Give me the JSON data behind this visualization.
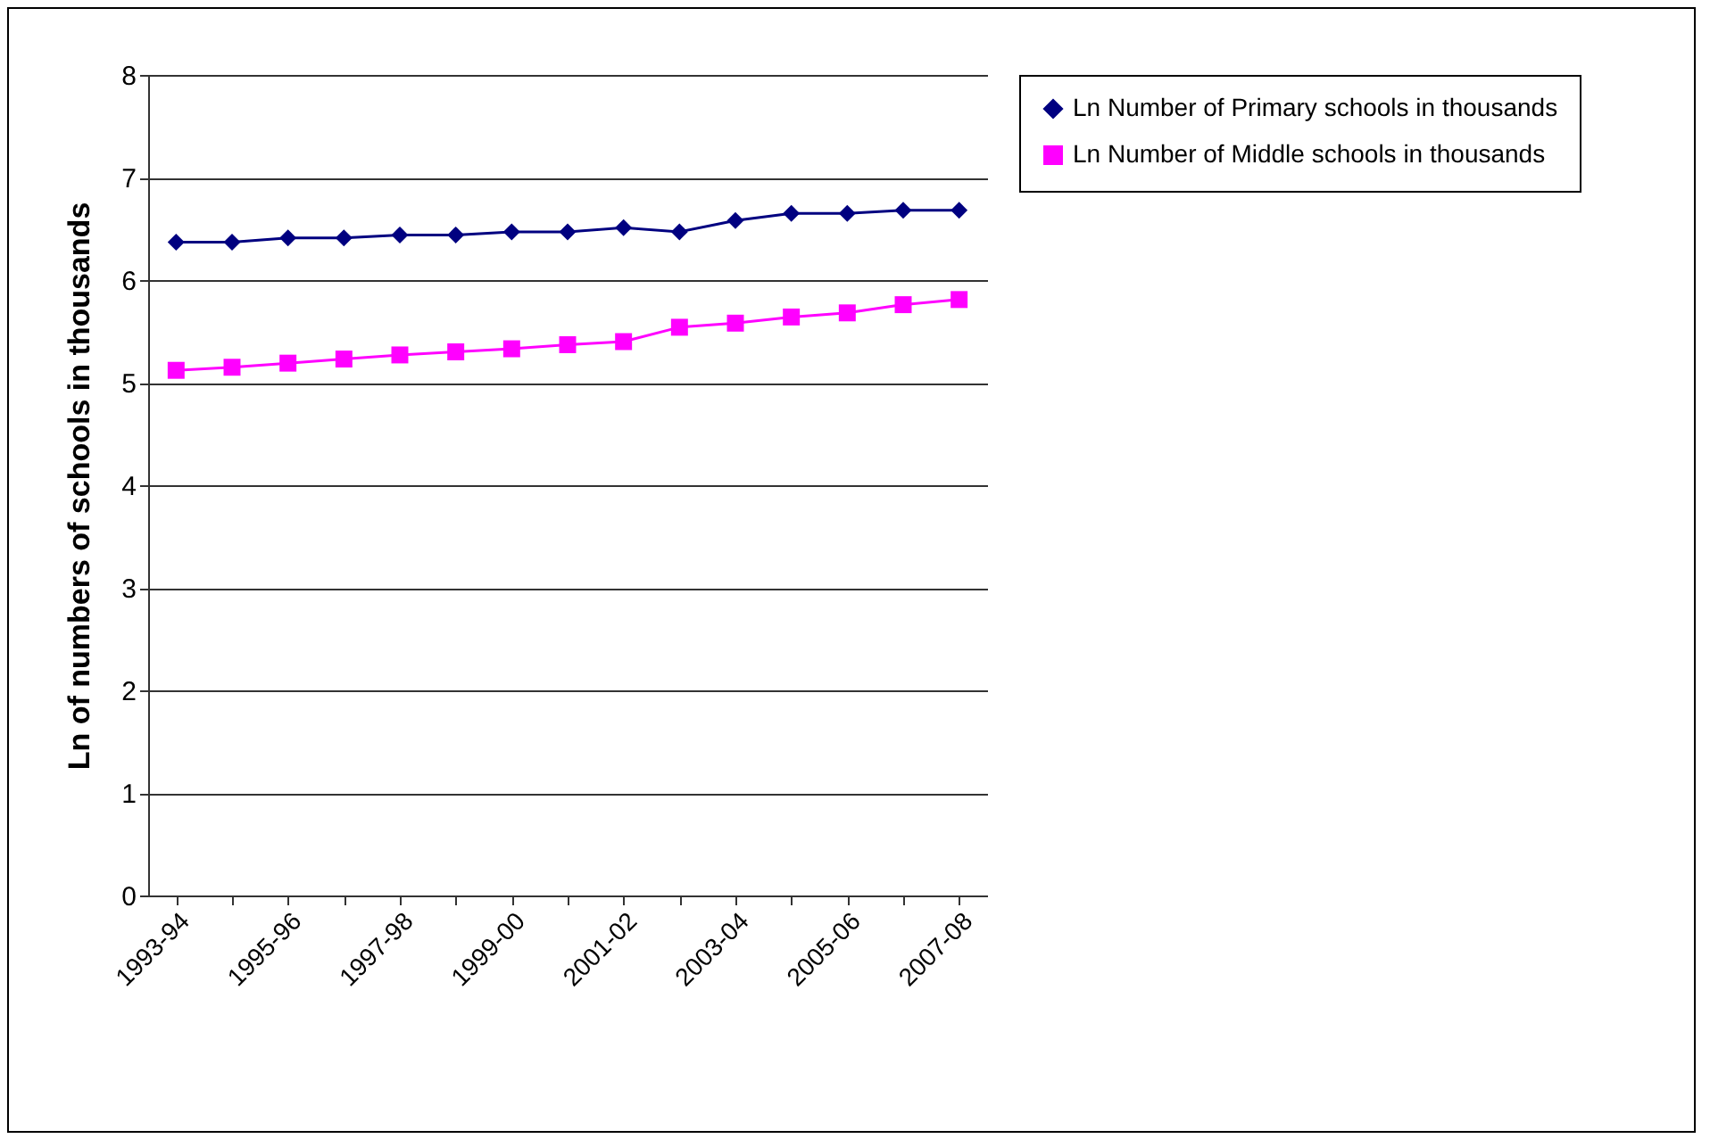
{
  "chart_data": {
    "type": "line",
    "ylabel": "Ln of numbers of schools in thousands",
    "categories": [
      "1993-94",
      null,
      "1995-96",
      null,
      "1997-98",
      null,
      "1999-00",
      null,
      "2001-02",
      null,
      "2003-04",
      null,
      "2005-06",
      null,
      "2007-08"
    ],
    "series": [
      {
        "name": "Ln Number of Primary schools in thousands",
        "color": "#000080",
        "marker": "diamond",
        "values": [
          6.37,
          6.37,
          6.41,
          6.41,
          6.44,
          6.44,
          6.47,
          6.47,
          6.51,
          6.47,
          6.58,
          6.65,
          6.65,
          6.68,
          6.68
        ]
      },
      {
        "name": "Ln Number of Middle schools in thousands",
        "color": "#ff00ff",
        "marker": "square",
        "values": [
          5.12,
          5.15,
          5.19,
          5.23,
          5.27,
          5.3,
          5.33,
          5.37,
          5.4,
          5.54,
          5.58,
          5.64,
          5.68,
          5.76,
          5.81
        ]
      }
    ],
    "ylim": [
      0,
      8
    ],
    "yticks": [
      0,
      1,
      2,
      3,
      4,
      5,
      6,
      7,
      8
    ],
    "grid": "y",
    "legend": "right"
  }
}
